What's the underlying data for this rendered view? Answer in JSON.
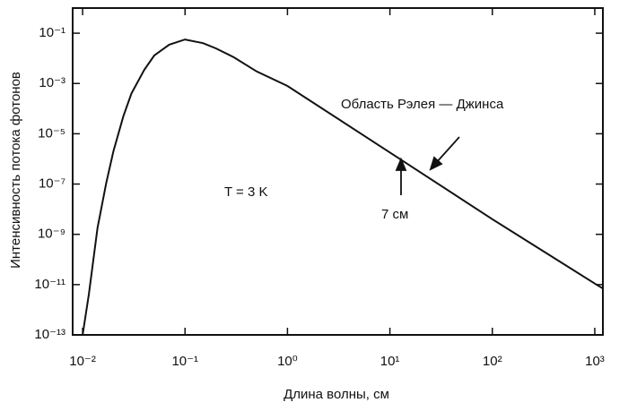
{
  "chart_data": {
    "type": "line",
    "xlabel": "Длина волны, см",
    "ylabel": "Интенсивность потока фотонов",
    "annotations": [
      "Область Рэлея — Джинса",
      "T = 3 K",
      "7 см"
    ],
    "x": [
      0.01,
      0.0115,
      0.014,
      0.017,
      0.02,
      0.025,
      0.03,
      0.04,
      0.05,
      0.07,
      0.1,
      0.15,
      0.2,
      0.3,
      0.5,
      1,
      10,
      100,
      1000,
      1200
    ],
    "series": [
      {
        "color": "#111111",
        "values": [
          1e-13,
          4e-12,
          1.8e-09,
          1.1e-07,
          2e-06,
          5e-05,
          0.0004,
          0.0035,
          0.013,
          0.035,
          0.056,
          0.04,
          0.025,
          0.011,
          0.003,
          0.0008,
          1.8e-06,
          4e-09,
          1.1e-11,
          7e-12
        ]
      }
    ],
    "xlog": true,
    "ylog": true,
    "xlim": [
      0.008,
      1200
    ],
    "ylim": [
      1e-13,
      1
    ],
    "xticks": [
      {
        "value": 0.01,
        "label": "10⁻²"
      },
      {
        "value": 0.1,
        "label": "10⁻¹"
      },
      {
        "value": 1,
        "label": "10⁰"
      },
      {
        "value": 10,
        "label": "10¹"
      },
      {
        "value": 100,
        "label": "10²"
      },
      {
        "value": 1000,
        "label": "10³"
      }
    ],
    "yticks": [
      {
        "value": 1e-13,
        "label": "10⁻¹³"
      },
      {
        "value": 1e-11,
        "label": "10⁻¹¹"
      },
      {
        "value": 1e-09,
        "label": "10⁻⁹"
      },
      {
        "value": 1e-07,
        "label": "10⁻⁷"
      },
      {
        "value": 1e-05,
        "label": "10⁻⁵"
      },
      {
        "value": 0.001,
        "label": "10⁻³"
      },
      {
        "value": 0.1,
        "label": "10⁻¹"
      }
    ]
  }
}
